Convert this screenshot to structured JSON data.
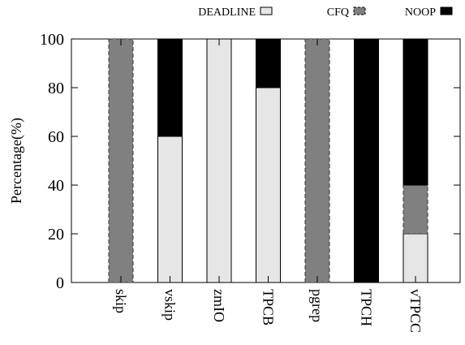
{
  "chart_data": {
    "type": "bar",
    "stacked": true,
    "title": "",
    "xlabel": "",
    "ylabel": "Percentage(%)",
    "ylim": [
      0,
      100
    ],
    "yticks": [
      0,
      20,
      40,
      60,
      80,
      100
    ],
    "grid": false,
    "legend_position": "top-right",
    "categories": [
      "skip",
      "vskip",
      "zmIO",
      "TPCB",
      "pgrep",
      "TPCH",
      "vTPCC"
    ],
    "series": [
      {
        "name": "DEADLINE",
        "color": "#e6e6e6",
        "dashed": false,
        "values": [
          0,
          60,
          100,
          80,
          0,
          0,
          20
        ]
      },
      {
        "name": "CFQ",
        "color": "#808080",
        "dashed": true,
        "values": [
          100,
          0,
          0,
          0,
          100,
          0,
          20
        ]
      },
      {
        "name": "NOOP",
        "color": "#000000",
        "dashed": false,
        "values": [
          0,
          40,
          0,
          20,
          0,
          100,
          60
        ]
      }
    ]
  }
}
